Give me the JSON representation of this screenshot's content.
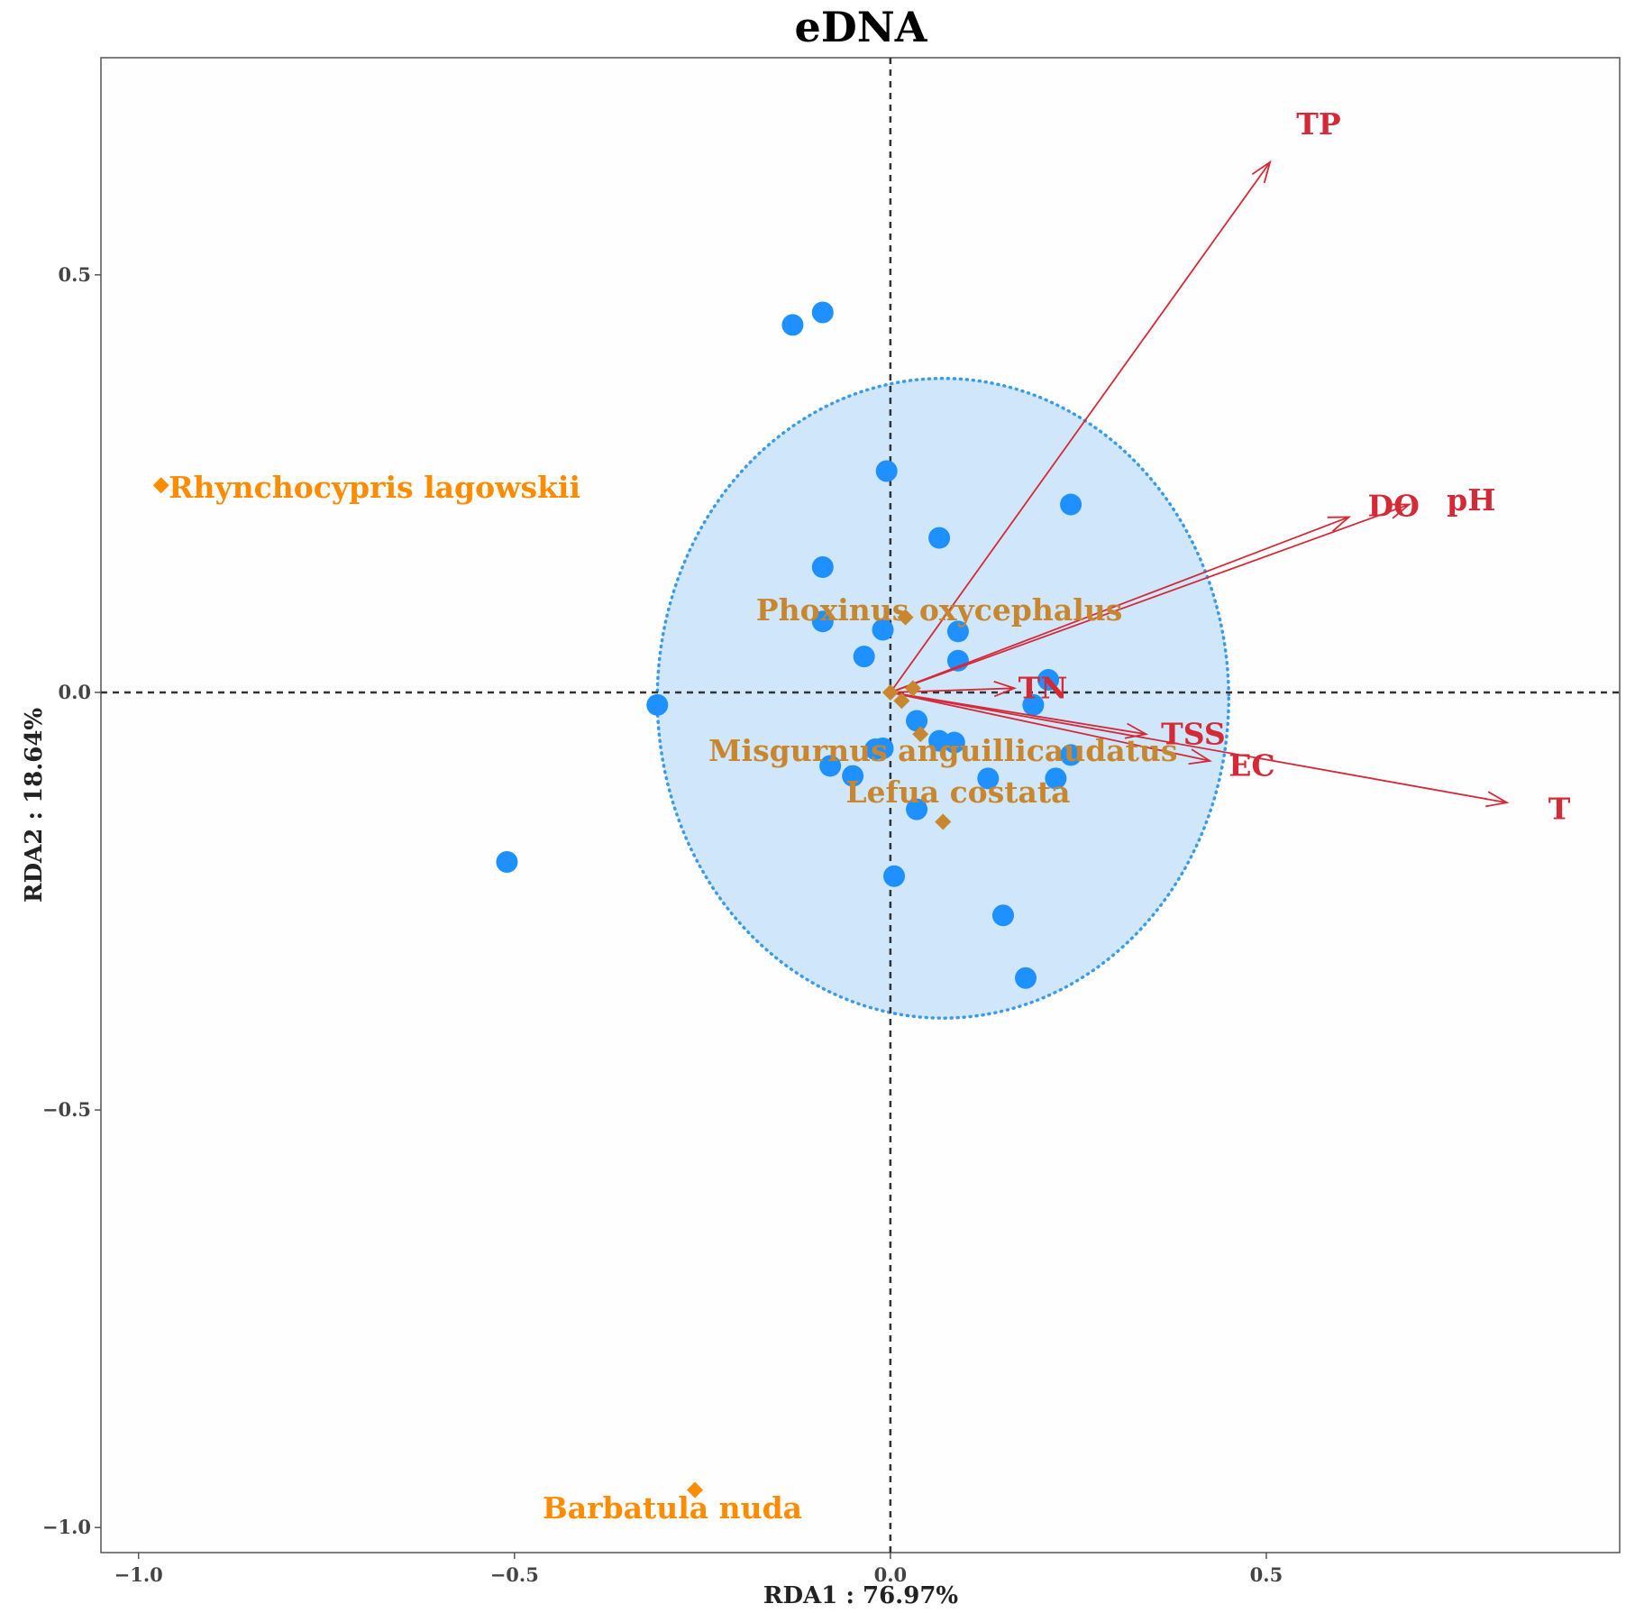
{
  "chart_data": {
    "type": "scatter",
    "title": "eDNA",
    "xlabel": "RDA1 : 76.97%",
    "ylabel": "RDA2 : 18.64%",
    "xlim": [
      -1.05,
      0.97
    ],
    "ylim": [
      -1.03,
      0.76
    ],
    "x_ticks": [
      {
        "value": -1.0,
        "label": "−1.0"
      },
      {
        "value": -0.5,
        "label": "−0.5"
      },
      {
        "value": 0.0,
        "label": "0.0"
      },
      {
        "value": 0.5,
        "label": "0.5"
      }
    ],
    "y_ticks": [
      {
        "value": 0.5,
        "label": "0.5"
      },
      {
        "value": 0.0,
        "label": "0.0"
      },
      {
        "value": -0.5,
        "label": "−0.5"
      },
      {
        "value": -1.0,
        "label": "−1.0"
      }
    ],
    "colors": {
      "sites": "#1e90ff",
      "ellipse_fill": "#d0e6fb",
      "ellipse_stroke": "#3a9be8",
      "arrows": "#d42a38",
      "species_bright": "#ff8c00",
      "species_muted": "#c8862f",
      "zero_lines": "#333333",
      "frame": "#555555"
    },
    "ellipse": {
      "cx": 0.07,
      "cy": -0.007,
      "rx": 0.38,
      "ry": 0.383
    },
    "sites": [
      [
        -0.13,
        0.44
      ],
      [
        -0.09,
        0.455
      ],
      [
        -0.005,
        0.265
      ],
      [
        0.24,
        0.225
      ],
      [
        0.065,
        0.185
      ],
      [
        -0.09,
        0.15
      ],
      [
        -0.09,
        0.085
      ],
      [
        -0.01,
        0.075
      ],
      [
        0.09,
        0.073
      ],
      [
        -0.035,
        0.043
      ],
      [
        0.09,
        0.038
      ],
      [
        0.21,
        0.015
      ],
      [
        0.19,
        -0.015
      ],
      [
        -0.31,
        -0.015
      ],
      [
        0.035,
        -0.034
      ],
      [
        0.065,
        -0.058
      ],
      [
        0.085,
        -0.06
      ],
      [
        -0.02,
        -0.068
      ],
      [
        -0.01,
        -0.067
      ],
      [
        0.24,
        -0.075
      ],
      [
        -0.08,
        -0.088
      ],
      [
        -0.05,
        -0.1
      ],
      [
        0.13,
        -0.103
      ],
      [
        0.22,
        -0.103
      ],
      [
        0.035,
        -0.14
      ],
      [
        -0.51,
        -0.203
      ],
      [
        0.005,
        -0.22
      ],
      [
        0.15,
        -0.267
      ],
      [
        0.18,
        -0.342
      ]
    ],
    "species": [
      {
        "name": "Rhynchocypris lagowskii",
        "x": -0.97,
        "y": 0.248,
        "tone": "bright",
        "anchor": "start",
        "dx": 0.01,
        "dy": -0.003
      },
      {
        "name": "Phoxinus oxycephalus",
        "x": 0.02,
        "y": 0.09,
        "tone": "muted",
        "anchor": "middle",
        "dx": 0.045,
        "dy": 0.008
      },
      {
        "name": "Misgurnus anguillicaudatus",
        "x": 0.04,
        "y": -0.05,
        "tone": "muted",
        "anchor": "middle",
        "dx": 0.03,
        "dy": -0.02
      },
      {
        "name": "Lefua costata",
        "x": 0.07,
        "y": -0.155,
        "tone": "muted",
        "anchor": "middle",
        "dx": 0.02,
        "dy": 0.035
      },
      {
        "name": "Barbatula nuda",
        "x": -0.26,
        "y": -0.955,
        "tone": "bright",
        "anchor": "middle",
        "dx": -0.03,
        "dy": -0.022
      },
      {
        "name": "",
        "x": 0.0,
        "y": 0.0,
        "tone": "muted",
        "anchor": "middle",
        "dx": 0,
        "dy": 0
      },
      {
        "name": "",
        "x": 0.015,
        "y": -0.01,
        "tone": "muted",
        "anchor": "middle",
        "dx": 0,
        "dy": 0
      },
      {
        "name": "",
        "x": 0.03,
        "y": 0.005,
        "tone": "muted",
        "anchor": "middle",
        "dx": 0,
        "dy": 0
      }
    ],
    "env_vectors": [
      {
        "name": "TP",
        "x": 0.505,
        "y": 0.635,
        "lx": 0.54,
        "ly": 0.68
      },
      {
        "name": "DO",
        "x": 0.61,
        "y": 0.21,
        "lx": 0.635,
        "ly": 0.223
      },
      {
        "name": "pH",
        "x": 0.69,
        "y": 0.225,
        "lx": 0.74,
        "ly": 0.23
      },
      {
        "name": "TN",
        "x": 0.165,
        "y": 0.005,
        "lx": 0.17,
        "ly": 0.005
      },
      {
        "name": "TSS",
        "x": 0.34,
        "y": -0.05,
        "lx": 0.36,
        "ly": -0.05
      },
      {
        "name": "EC",
        "x": 0.425,
        "y": -0.082,
        "lx": 0.45,
        "ly": -0.088
      },
      {
        "name": "T",
        "x": 0.82,
        "y": -0.132,
        "lx": 0.875,
        "ly": -0.14
      }
    ]
  }
}
